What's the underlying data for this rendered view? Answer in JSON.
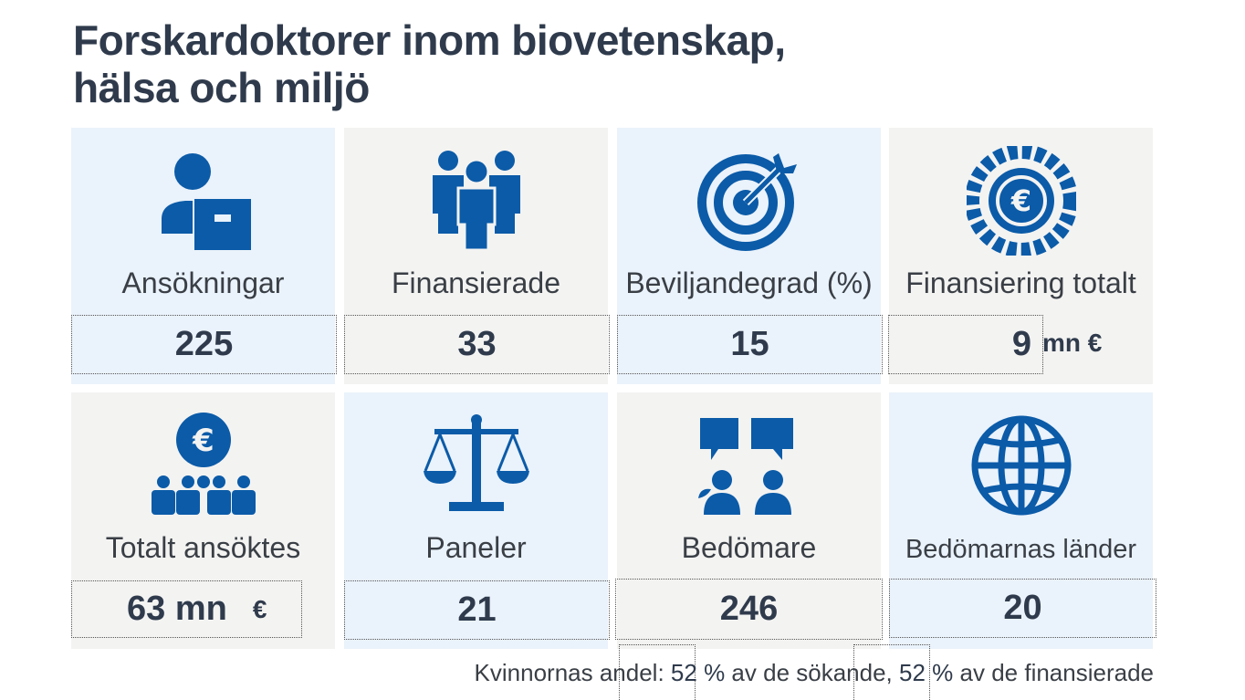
{
  "title_line1": "Forskardoktorer inom biovetenskap,",
  "title_line2": "hälsa och miljö",
  "tiles": [
    {
      "label": "Ansökningar",
      "value": "225",
      "unit": "",
      "icon": "applicant-icon"
    },
    {
      "label": "Finansierade",
      "value": "33",
      "unit": "",
      "icon": "group-icon"
    },
    {
      "label": "Beviljandegrad (%)",
      "value": "15",
      "unit": "",
      "icon": "target-icon"
    },
    {
      "label": "Finansiering totalt",
      "value": "9",
      "unit": "mn €",
      "icon": "euro-coin-icon"
    },
    {
      "label": "Totalt ansöktes",
      "value": "63 mn",
      "unit": "€",
      "icon": "euro-people-icon"
    },
    {
      "label": "Paneler",
      "value": "21",
      "unit": "",
      "icon": "scales-icon"
    },
    {
      "label": "Bedömare",
      "value": "246",
      "unit": "",
      "icon": "reviewers-icon"
    },
    {
      "label": "Bedömarnas länder",
      "value": "20",
      "unit": "",
      "icon": "globe-icon"
    }
  ],
  "footer": {
    "prefix": "Kvinnornas andel:",
    "pct_applicants": "52 %",
    "mid": "av de sökande,",
    "pct_funded": "52 %",
    "suffix": "av de finansierade"
  },
  "colors": {
    "icon": "#0b5ba8",
    "tile_blue": "#eaf2fb",
    "tile_gray": "#f3f3f2"
  }
}
